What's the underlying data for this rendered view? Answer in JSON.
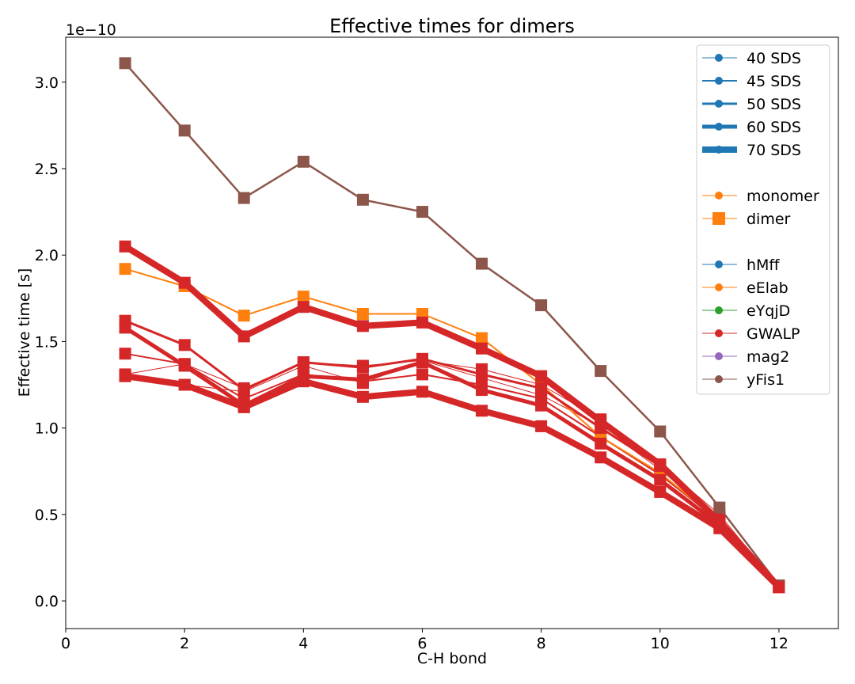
{
  "chart_data": {
    "type": "line",
    "title": "Effective times for dimers",
    "xlabel": "C-H bond",
    "ylabel": "Effective time [s]",
    "y_offset_label": "1e−10",
    "xlim": [
      0,
      13
    ],
    "ylim": [
      -0.16,
      3.26
    ],
    "x_ticks": [
      0,
      2,
      4,
      6,
      8,
      10,
      12
    ],
    "x_tick_labels": [
      "0",
      "2",
      "4",
      "6",
      "8",
      "10",
      "12"
    ],
    "y_ticks": [
      0.0,
      0.5,
      1.0,
      1.5,
      2.0,
      2.5,
      3.0
    ],
    "y_tick_labels": [
      "0.0",
      "0.5",
      "1.0",
      "1.5",
      "2.0",
      "2.5",
      "3.0"
    ],
    "grid": false,
    "legend_position": "top-right",
    "legend": {
      "concentrations": [
        {
          "label": "40 SDS",
          "width": 1
        },
        {
          "label": "45 SDS",
          "width": 2
        },
        {
          "label": "50 SDS",
          "width": 3
        },
        {
          "label": "60 SDS",
          "width": 5
        },
        {
          "label": "70 SDS",
          "width": 8
        }
      ],
      "kinds": [
        {
          "label": "monomer",
          "marker": "circle"
        },
        {
          "label": "dimer",
          "marker": "square"
        }
      ],
      "peptides": [
        {
          "label": "hMff",
          "color": "#1f77b4"
        },
        {
          "label": "eElab",
          "color": "#ff7f0e"
        },
        {
          "label": "eYqjD",
          "color": "#2ca02c"
        },
        {
          "label": "GWALP",
          "color": "#d62728"
        },
        {
          "label": "mag2",
          "color": "#9467bd"
        },
        {
          "label": "yFis1",
          "color": "#8c564b"
        }
      ]
    },
    "x": [
      1,
      2,
      3,
      4,
      5,
      6,
      7,
      8,
      9,
      10,
      11,
      12
    ],
    "series": [
      {
        "color": "#d62728",
        "width": 1,
        "values": [
          1.31,
          1.37,
          1.23,
          1.38,
          1.36,
          1.39,
          1.34,
          1.25,
          1.05,
          0.79,
          0.5,
          0.08
        ]
      },
      {
        "color": "#d62728",
        "width": 1,
        "values": [
          1.3,
          1.25,
          1.21,
          1.36,
          1.26,
          1.39,
          1.29,
          1.19,
          1.01,
          0.76,
          0.48,
          0.08
        ]
      },
      {
        "color": "#d62728",
        "width": 2,
        "values": [
          1.43,
          1.37,
          1.17,
          1.31,
          1.27,
          1.31,
          1.25,
          1.17,
          0.95,
          0.73,
          0.46,
          0.08
        ]
      },
      {
        "color": "#ff7f0e",
        "width": 2,
        "values": [
          1.92,
          1.82,
          1.65,
          1.76,
          1.66,
          1.66,
          1.52,
          1.25,
          0.95,
          0.74,
          0.46,
          0.08
        ]
      },
      {
        "color": "#d62728",
        "width": 3,
        "values": [
          1.62,
          1.48,
          1.22,
          1.38,
          1.35,
          1.4,
          1.31,
          1.23,
          1.0,
          0.78,
          0.48,
          0.08
        ]
      },
      {
        "color": "#d62728",
        "width": 5,
        "values": [
          1.58,
          1.36,
          1.13,
          1.3,
          1.28,
          1.38,
          1.22,
          1.13,
          0.91,
          0.7,
          0.44,
          0.08
        ]
      },
      {
        "color": "#8c564b",
        "width": 2.5,
        "values": [
          3.11,
          2.72,
          2.33,
          2.54,
          2.32,
          2.25,
          1.95,
          1.71,
          1.33,
          0.98,
          0.54,
          0.09
        ]
      },
      {
        "color": "#d62728",
        "width": 8,
        "values": [
          1.3,
          1.25,
          1.12,
          1.27,
          1.18,
          1.21,
          1.1,
          1.01,
          0.83,
          0.63,
          0.42,
          0.08
        ]
      },
      {
        "color": "#d62728",
        "width": 8,
        "values": [
          2.05,
          1.84,
          1.53,
          1.7,
          1.59,
          1.61,
          1.46,
          1.3,
          1.04,
          0.79,
          0.46,
          0.08
        ]
      }
    ]
  }
}
